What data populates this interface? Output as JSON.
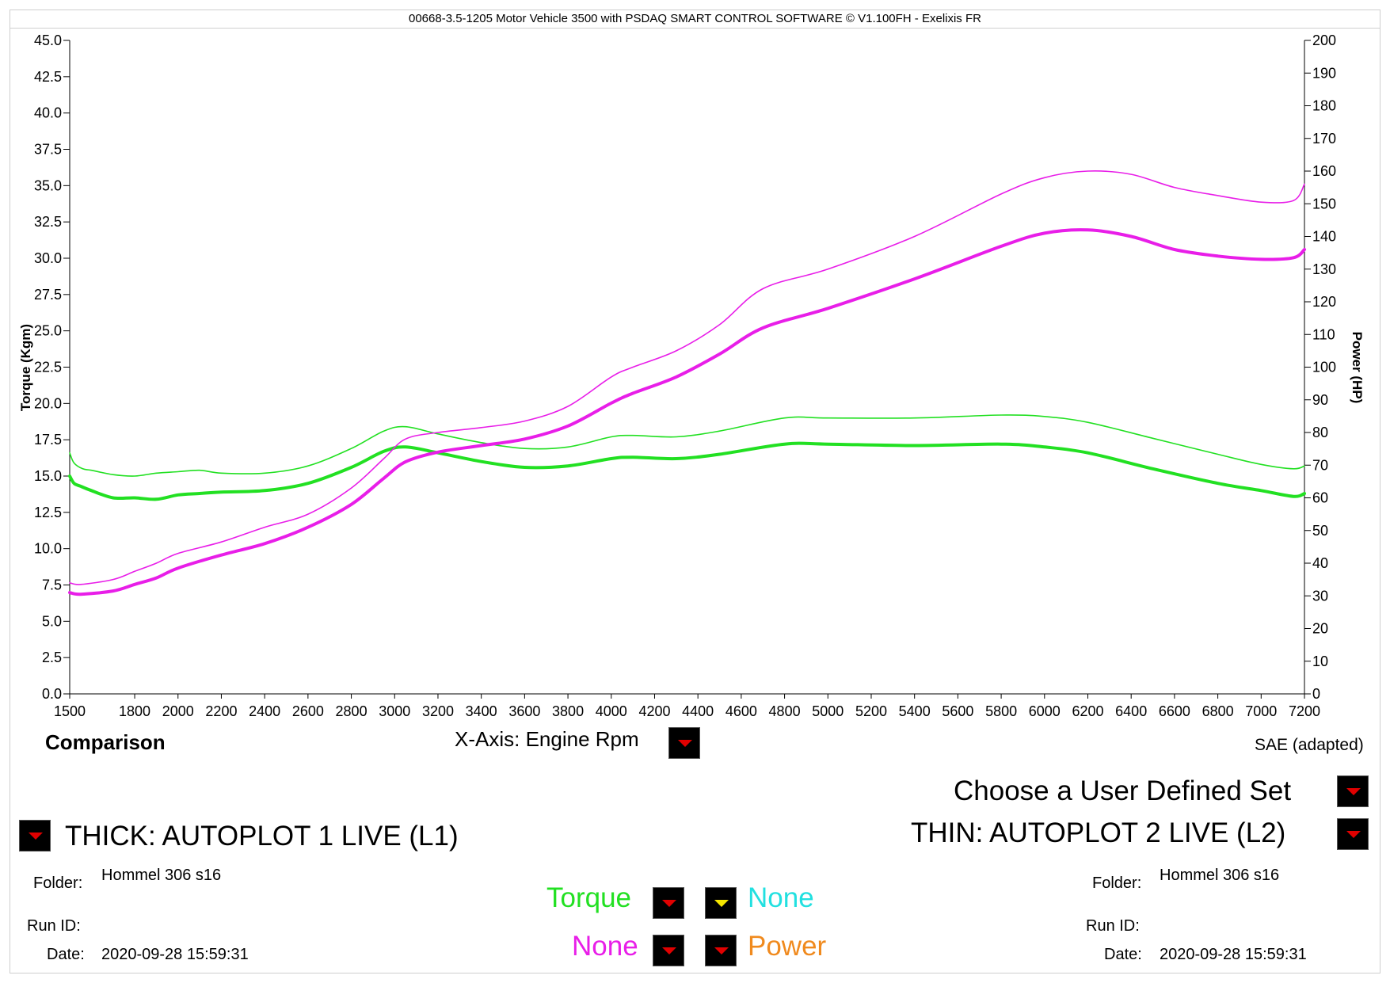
{
  "window_title": "00668-3.5-1205 Motor Vehicle 3500 with PSDAQ SMART CONTROL SOFTWARE © V1.100FH - Exelixis FR",
  "colors": {
    "torque": "#22e022",
    "power": "#e81ee8",
    "accent": "#e00000",
    "none_cyan": "#22e0e0",
    "power_label": "#f08a1e"
  },
  "chart_data": {
    "type": "line",
    "xlabel": "",
    "ylabel_left": "Torque (Kgm)",
    "ylabel_right": "Power (HP)",
    "xlim": [
      1500,
      7200
    ],
    "ylim_left": [
      0,
      45
    ],
    "ylim_right": [
      0,
      200
    ],
    "x_ticks": [
      "1500",
      "1800",
      "2000",
      "2200",
      "2400",
      "2600",
      "2800",
      "3000",
      "3200",
      "3400",
      "3600",
      "3800",
      "4000",
      "4200",
      "4400",
      "4600",
      "4800",
      "5000",
      "5200",
      "5400",
      "5600",
      "5800",
      "6000",
      "6200",
      "6400",
      "6600",
      "6800",
      "7000",
      "7200"
    ],
    "y_left_ticks": [
      "0.0",
      "2.5",
      "5.0",
      "7.5",
      "10.0",
      "12.5",
      "15.0",
      "17.5",
      "20.0",
      "22.5",
      "25.0",
      "27.5",
      "30.0",
      "32.5",
      "35.0",
      "37.5",
      "40.0",
      "42.5",
      "45.0"
    ],
    "y_right_ticks": [
      "0",
      "10",
      "20",
      "30",
      "40",
      "50",
      "60",
      "70",
      "80",
      "90",
      "100",
      "110",
      "120",
      "130",
      "140",
      "150",
      "160",
      "170",
      "180",
      "190",
      "200"
    ],
    "series": [
      {
        "axis": "left",
        "color": "#22e022",
        "width": 4,
        "x": [
          1500,
          1520,
          1550,
          1600,
          1700,
          1800,
          1900,
          2000,
          2100,
          2200,
          2400,
          2600,
          2800,
          2950,
          3050,
          3200,
          3400,
          3600,
          3800,
          4000,
          4100,
          4300,
          4500,
          4800,
          5000,
          5400,
          5800,
          6000,
          6200,
          6500,
          6800,
          7000,
          7150,
          7200
        ],
        "y": [
          15.0,
          14.5,
          14.3,
          14.0,
          13.5,
          13.5,
          13.4,
          13.7,
          13.8,
          13.9,
          14.0,
          14.5,
          15.6,
          16.7,
          17.0,
          16.6,
          16.0,
          15.6,
          15.7,
          16.2,
          16.3,
          16.2,
          16.5,
          17.2,
          17.2,
          17.1,
          17.2,
          17.0,
          16.6,
          15.5,
          14.5,
          14.0,
          13.6,
          13.8
        ]
      },
      {
        "axis": "left",
        "color": "#22e022",
        "width": 1.6,
        "x": [
          1500,
          1520,
          1560,
          1600,
          1700,
          1800,
          1900,
          2000,
          2100,
          2200,
          2400,
          2600,
          2800,
          2950,
          3050,
          3200,
          3400,
          3600,
          3800,
          4000,
          4100,
          4300,
          4500,
          4800,
          5000,
          5400,
          5800,
          6000,
          6200,
          6500,
          6800,
          7000,
          7150,
          7200
        ],
        "y": [
          16.6,
          15.9,
          15.5,
          15.4,
          15.1,
          15.0,
          15.2,
          15.3,
          15.4,
          15.2,
          15.2,
          15.7,
          16.9,
          18.1,
          18.4,
          17.9,
          17.3,
          16.9,
          17.0,
          17.7,
          17.8,
          17.7,
          18.1,
          19.0,
          19.0,
          19.0,
          19.2,
          19.1,
          18.7,
          17.6,
          16.5,
          15.8,
          15.5,
          15.7
        ]
      },
      {
        "axis": "right",
        "color": "#e81ee8",
        "width": 4,
        "x": [
          1500,
          1550,
          1700,
          1800,
          1900,
          2000,
          2200,
          2400,
          2600,
          2800,
          2950,
          3050,
          3200,
          3400,
          3600,
          3800,
          4000,
          4100,
          4300,
          4500,
          4700,
          5000,
          5400,
          5800,
          6000,
          6200,
          6400,
          6600,
          6800,
          7000,
          7150,
          7200
        ],
        "y": [
          31,
          30.5,
          31.5,
          33.5,
          35.5,
          38.5,
          42.5,
          46,
          51,
          58,
          66,
          71,
          74,
          76,
          78,
          82,
          89,
          92,
          97,
          104,
          112,
          118,
          127,
          137,
          141,
          142,
          140,
          136,
          134,
          133,
          133.5,
          136
        ]
      },
      {
        "axis": "right",
        "color": "#e81ee8",
        "width": 1.6,
        "x": [
          1500,
          1550,
          1700,
          1800,
          1900,
          2000,
          2200,
          2400,
          2600,
          2800,
          2950,
          3050,
          3200,
          3400,
          3600,
          3800,
          4000,
          4100,
          4300,
          4500,
          4700,
          5000,
          5400,
          5800,
          6000,
          6200,
          6400,
          6600,
          6800,
          7000,
          7150,
          7200
        ],
        "y": [
          34,
          33.5,
          35,
          37.5,
          40,
          43,
          46.5,
          51,
          55,
          63,
          72,
          78,
          80,
          81.5,
          83.5,
          88,
          97,
          100,
          105,
          113,
          124,
          130,
          140,
          153,
          158,
          160,
          159,
          155,
          152.5,
          150.5,
          151,
          156
        ]
      }
    ]
  },
  "labels": {
    "comparison": "Comparison",
    "x_axis_label": "X-Axis: Engine Rpm",
    "sae": "SAE (adapted)",
    "user_defined_set": "Choose a User Defined Set",
    "thick": "THICK: AUTOPLOT 1 LIVE (L1)",
    "thin": "THIN: AUTOPLOT 2 LIVE (L2)",
    "folder_label": "Folder:",
    "runid_label": "Run ID:",
    "date_label": "Date:",
    "left_folder": "Hommel 306 s16",
    "left_date": "2020-09-28 15:59:31",
    "right_folder": "Hommel 306 s16",
    "right_date": "2020-09-28 15:59:31",
    "sel_torque": "Torque",
    "sel_none_cyan": "None",
    "sel_none_magenta": "None",
    "sel_power": "Power"
  }
}
